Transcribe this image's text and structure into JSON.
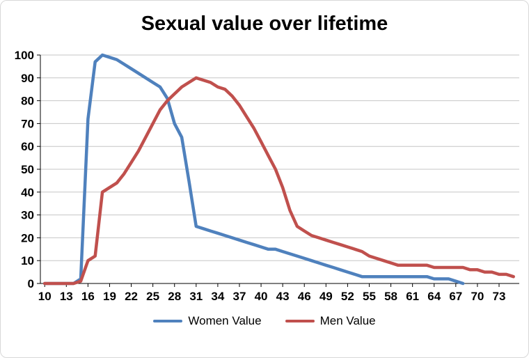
{
  "chart_data": {
    "type": "line",
    "title": "Sexual value over lifetime",
    "xlabel": "",
    "ylabel": "",
    "xlim": [
      9.4,
      75.8
    ],
    "ylim": [
      0,
      100
    ],
    "x_ticks": [
      10,
      13,
      16,
      19,
      22,
      25,
      28,
      31,
      34,
      37,
      40,
      43,
      46,
      49,
      52,
      55,
      58,
      61,
      64,
      67,
      70,
      73
    ],
    "y_ticks": [
      0,
      10,
      20,
      30,
      40,
      50,
      60,
      70,
      80,
      90,
      100
    ],
    "grid": "horizontal",
    "gridline_color": "#c6c6c6",
    "axis_color": "#000000",
    "legend_position": "bottom",
    "series": [
      {
        "name": "Women Value",
        "color": "#4f81bd",
        "x": [
          10,
          11,
          12,
          13,
          14,
          15,
          16,
          17,
          18,
          19,
          20,
          21,
          22,
          23,
          24,
          25,
          26,
          27,
          28,
          29,
          30,
          31,
          32,
          33,
          34,
          35,
          36,
          37,
          38,
          39,
          40,
          41,
          42,
          43,
          44,
          45,
          46,
          47,
          48,
          49,
          50,
          51,
          52,
          53,
          54,
          55,
          56,
          57,
          58,
          59,
          60,
          61,
          62,
          63,
          64,
          65,
          66,
          67,
          68
        ],
        "values": [
          0,
          0,
          0,
          0,
          0,
          2,
          72,
          97,
          100,
          99,
          98,
          96,
          94,
          92,
          90,
          88,
          86,
          81,
          70,
          64,
          45,
          25,
          24,
          23,
          22,
          21,
          20,
          19,
          18,
          17,
          16,
          15,
          15,
          14,
          13,
          12,
          11,
          10,
          9,
          8,
          7,
          6,
          5,
          4,
          3,
          3,
          3,
          3,
          3,
          3,
          3,
          3,
          3,
          3,
          2,
          2,
          2,
          1,
          0
        ]
      },
      {
        "name": "Men Value",
        "color": "#c0504d",
        "x": [
          10,
          11,
          12,
          13,
          14,
          15,
          16,
          17,
          18,
          19,
          20,
          21,
          22,
          23,
          24,
          25,
          26,
          27,
          28,
          29,
          30,
          31,
          32,
          33,
          34,
          35,
          36,
          37,
          38,
          39,
          40,
          41,
          42,
          43,
          44,
          45,
          46,
          47,
          48,
          49,
          50,
          51,
          52,
          53,
          54,
          55,
          56,
          57,
          58,
          59,
          60,
          61,
          62,
          63,
          64,
          65,
          66,
          67,
          68,
          69,
          70,
          71,
          72,
          73,
          74,
          75
        ],
        "values": [
          0,
          0,
          0,
          0,
          0,
          1,
          10,
          12,
          40,
          42,
          44,
          48,
          53,
          58,
          64,
          70,
          76,
          80,
          83,
          86,
          88,
          90,
          89,
          88,
          86,
          85,
          82,
          78,
          73,
          68,
          62,
          56,
          50,
          42,
          32,
          25,
          23,
          21,
          20,
          19,
          18,
          17,
          16,
          15,
          14,
          12,
          11,
          10,
          9,
          8,
          8,
          8,
          8,
          8,
          7,
          7,
          7,
          7,
          7,
          6,
          6,
          5,
          5,
          4,
          4,
          3
        ]
      }
    ]
  }
}
